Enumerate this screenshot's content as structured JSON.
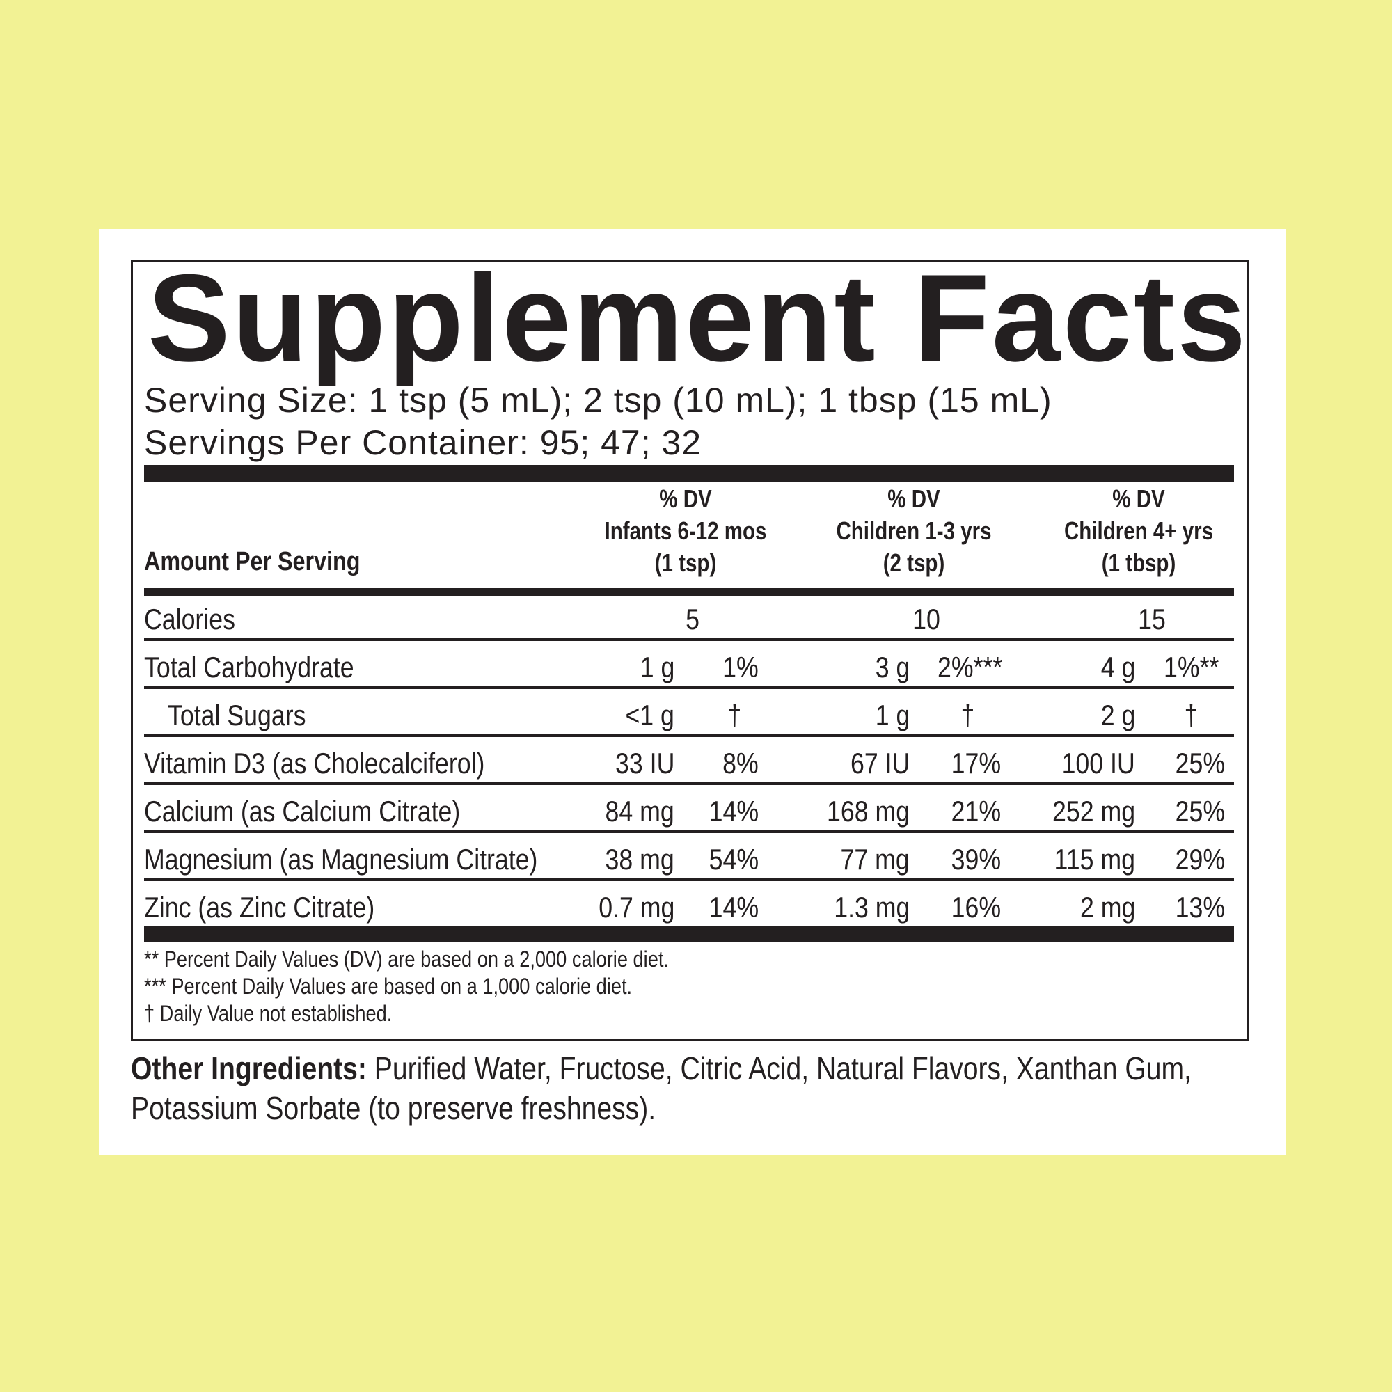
{
  "title": "Supplement Facts",
  "serving_size": "Serving Size: 1 tsp (5 mL); 2 tsp (10 mL); 1 tbsp (15 mL)",
  "servings_per_container": "Servings Per Container: 95; 47; 32",
  "header": {
    "amount_per_serving": "Amount Per Serving",
    "columns": [
      {
        "dv": "% DV",
        "group": "Infants 6-12 mos",
        "serving": "(1 tsp)"
      },
      {
        "dv": "% DV",
        "group": "Children 1-3 yrs",
        "serving": "(2 tsp)"
      },
      {
        "dv": "% DV",
        "group": "Children 4+ yrs",
        "serving": "(1 tbsp)"
      }
    ]
  },
  "calories": {
    "label": "Calories",
    "values": [
      "5",
      "10",
      "15"
    ]
  },
  "rows": [
    {
      "label": "Total Carbohydrate",
      "cols": [
        {
          "amt": "1 g",
          "pct": "1%",
          "note": ""
        },
        {
          "amt": "3 g",
          "pct": "2%",
          "note": "***"
        },
        {
          "amt": "4 g",
          "pct": "1%",
          "note": "**"
        }
      ]
    },
    {
      "label": "Total Sugars",
      "cols": [
        {
          "amt": "<1 g",
          "pct": "†"
        },
        {
          "amt": "1 g",
          "pct": "†"
        },
        {
          "amt": "2 g",
          "pct": "†"
        }
      ]
    },
    {
      "label": "Vitamin D3 (as Cholecalciferol)",
      "cols": [
        {
          "amt": "33 IU",
          "pct": "8%"
        },
        {
          "amt": "67 IU",
          "pct": "17%"
        },
        {
          "amt": "100 IU",
          "pct": "25%"
        }
      ]
    },
    {
      "label": "Calcium (as Calcium Citrate)",
      "cols": [
        {
          "amt": "84 mg",
          "pct": "14%"
        },
        {
          "amt": "168 mg",
          "pct": "21%"
        },
        {
          "amt": "252 mg",
          "pct": "25%"
        }
      ]
    },
    {
      "label": "Magnesium (as Magnesium Citrate)",
      "cols": [
        {
          "amt": "38 mg",
          "pct": "54%"
        },
        {
          "amt": "77 mg",
          "pct": "39%"
        },
        {
          "amt": "115 mg",
          "pct": "29%"
        }
      ]
    },
    {
      "label": "Zinc (as Zinc Citrate)",
      "cols": [
        {
          "amt": "0.7 mg",
          "pct": "14%"
        },
        {
          "amt": "1.3 mg",
          "pct": "16%"
        },
        {
          "amt": "2 mg",
          "pct": "13%"
        }
      ]
    }
  ],
  "footnotes": [
    "** Percent Daily Values (DV) are based on a 2,000 calorie diet.",
    "*** Percent Daily Values are based on a 1,000 calorie diet.",
    "† Daily Value not established."
  ],
  "other_ingredients": {
    "label": "Other Ingredients:",
    "line1": " Purified Water, Fructose, Citric Acid, Natural Flavors, Xanthan Gum,",
    "line2": "Potassium Sorbate (to preserve freshness)."
  },
  "colors": {
    "background": "#f2f294",
    "panel": "#ffffff",
    "ink": "#231f20"
  }
}
